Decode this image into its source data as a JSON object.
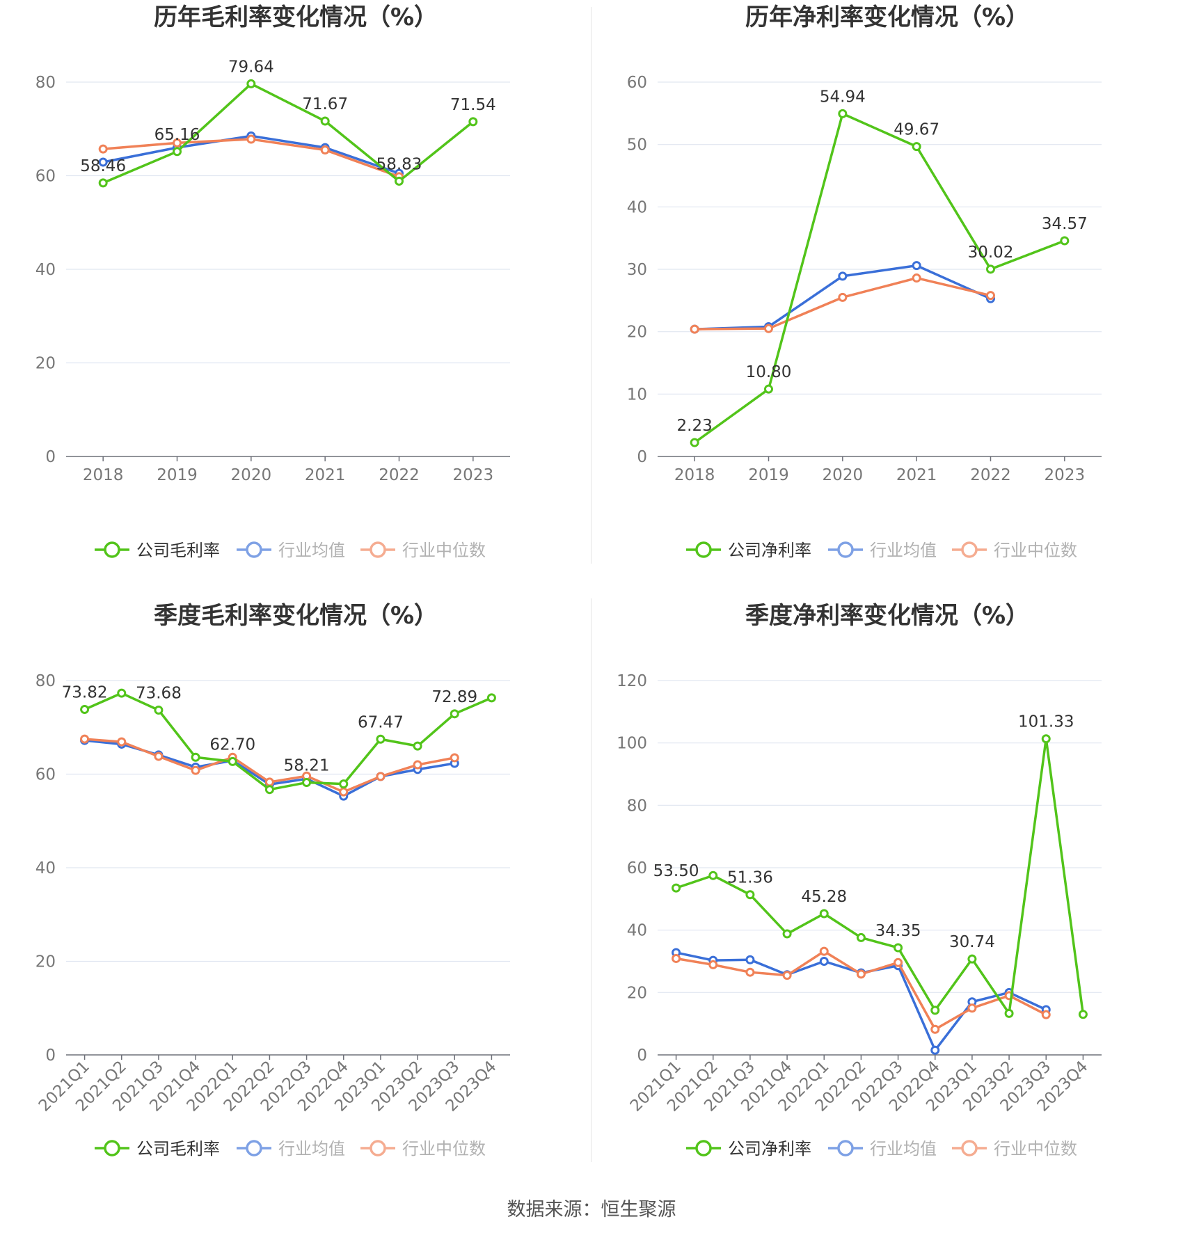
{
  "source": "数据来源：恒生聚源",
  "colors": {
    "company": "#52c41a",
    "avg": "#3a6fd8",
    "median": "#f08157",
    "grid": "#e0e6f1",
    "axis": "#6e7079"
  },
  "chart_data": [
    {
      "type": "line",
      "title": "历年毛利率变化情况（%）",
      "categories": [
        "2018",
        "2019",
        "2020",
        "2021",
        "2022",
        "2023"
      ],
      "ylim": [
        0,
        80
      ],
      "yticks": [
        0,
        20,
        40,
        60,
        80
      ],
      "rotate_x": false,
      "grid": true,
      "legend_position": "bottom",
      "series": [
        {
          "name": "公司毛利率",
          "key": "company",
          "values": [
            58.46,
            65.16,
            79.64,
            71.67,
            58.83,
            71.54
          ]
        },
        {
          "name": "行业均值",
          "key": "avg",
          "values": [
            62.9,
            66.0,
            68.5,
            66.0,
            60.5,
            null
          ]
        },
        {
          "name": "行业中位数",
          "key": "median",
          "values": [
            65.7,
            67.0,
            67.8,
            65.5,
            59.8,
            null
          ]
        }
      ],
      "data_labels": [
        "58.46",
        "65.16",
        "79.64",
        "71.67",
        "58.83",
        "71.54"
      ]
    },
    {
      "type": "line",
      "title": "历年净利率变化情况（%）",
      "categories": [
        "2018",
        "2019",
        "2020",
        "2021",
        "2022",
        "2023"
      ],
      "ylim": [
        0,
        60
      ],
      "yticks": [
        0,
        10,
        20,
        30,
        40,
        50,
        60
      ],
      "rotate_x": false,
      "grid": true,
      "legend_position": "bottom",
      "series": [
        {
          "name": "公司净利率",
          "key": "company",
          "values": [
            2.23,
            10.8,
            54.94,
            49.67,
            30.02,
            34.57
          ]
        },
        {
          "name": "行业均值",
          "key": "avg",
          "values": [
            20.4,
            20.8,
            28.9,
            30.6,
            25.3,
            null
          ]
        },
        {
          "name": "行业中位数",
          "key": "median",
          "values": [
            20.4,
            20.5,
            25.5,
            28.6,
            25.8,
            null
          ]
        }
      ],
      "data_labels": [
        "2.23",
        "10.80",
        "54.94",
        "49.67",
        "30.02",
        "34.57"
      ]
    },
    {
      "type": "line",
      "title": "季度毛利率变化情况（%）",
      "categories": [
        "2021Q1",
        "2021Q2",
        "2021Q3",
        "2021Q4",
        "2022Q1",
        "2022Q2",
        "2022Q3",
        "2022Q4",
        "2023Q1",
        "2023Q2",
        "2023Q3",
        "2023Q4"
      ],
      "ylim": [
        0,
        80
      ],
      "yticks": [
        0,
        20,
        40,
        60,
        80
      ],
      "rotate_x": true,
      "grid": true,
      "legend_position": "bottom",
      "series": [
        {
          "name": "公司毛利率",
          "key": "company",
          "values": [
            73.82,
            77.3,
            73.68,
            63.6,
            62.7,
            56.7,
            58.21,
            57.9,
            67.47,
            66.0,
            72.89,
            76.3
          ]
        },
        {
          "name": "行业均值",
          "key": "avg",
          "values": [
            67.2,
            66.4,
            64.1,
            61.5,
            62.9,
            57.8,
            59.0,
            55.3,
            59.5,
            61.0,
            62.3,
            null
          ]
        },
        {
          "name": "行业中位数",
          "key": "median",
          "values": [
            67.5,
            66.9,
            63.8,
            60.8,
            63.6,
            58.3,
            59.6,
            56.2,
            59.5,
            62.0,
            63.5,
            null
          ]
        }
      ],
      "data_labels": [
        "73.82",
        "",
        "73.68",
        "",
        "62.70",
        "",
        "58.21",
        "",
        "67.47",
        "",
        "72.89",
        ""
      ]
    },
    {
      "type": "line",
      "title": "季度净利率变化情况（%）",
      "categories": [
        "2021Q1",
        "2021Q2",
        "2021Q3",
        "2021Q4",
        "2022Q1",
        "2022Q2",
        "2022Q3",
        "2022Q4",
        "2023Q1",
        "2023Q2",
        "2023Q3",
        "2023Q4"
      ],
      "ylim": [
        0,
        120
      ],
      "yticks": [
        0,
        20,
        40,
        60,
        80,
        100,
        120
      ],
      "rotate_x": true,
      "grid": true,
      "legend_position": "bottom",
      "series": [
        {
          "name": "公司净利率",
          "key": "company",
          "values": [
            53.5,
            57.5,
            51.36,
            38.8,
            45.28,
            37.6,
            34.35,
            14.3,
            30.74,
            13.3,
            101.33,
            13.0
          ]
        },
        {
          "name": "行业均值",
          "key": "avg",
          "values": [
            32.8,
            30.3,
            30.5,
            25.7,
            30.0,
            26.3,
            28.6,
            1.5,
            17.0,
            20.0,
            14.5,
            null
          ]
        },
        {
          "name": "行业中位数",
          "key": "median",
          "values": [
            30.9,
            28.9,
            26.5,
            25.5,
            33.2,
            25.9,
            29.6,
            8.2,
            15.0,
            19.0,
            12.9,
            null
          ]
        }
      ],
      "data_labels": [
        "53.50",
        "",
        "51.36",
        "",
        "45.28",
        "",
        "34.35",
        "",
        "30.74",
        "",
        "101.33",
        ""
      ]
    }
  ]
}
